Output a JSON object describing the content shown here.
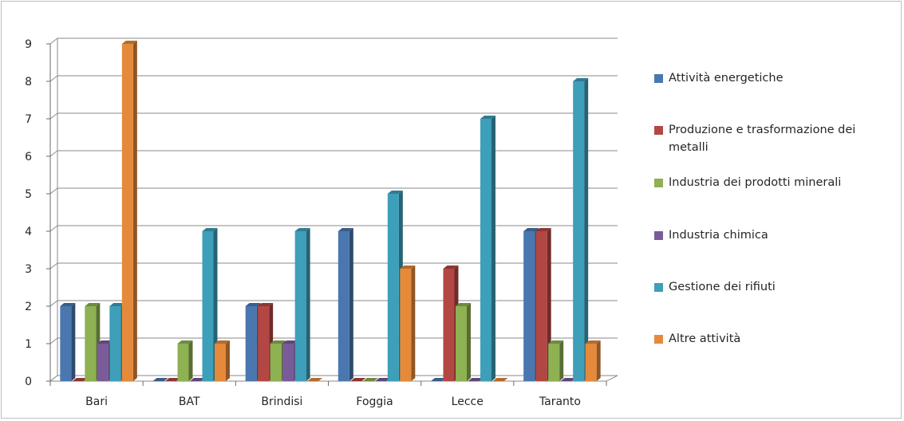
{
  "chart_data": {
    "type": "bar",
    "title": "",
    "xlabel": "",
    "ylabel": "",
    "ylim": [
      0,
      9
    ],
    "yticks": [
      "0",
      "1",
      "2",
      "3",
      "4",
      "5",
      "6",
      "7",
      "8",
      "9"
    ],
    "grid": true,
    "legend_position": "right",
    "categories": [
      "Bari",
      "BAT",
      "Brindisi",
      "Foggia",
      "Lecce",
      "Taranto"
    ],
    "series": [
      {
        "name": "Attività energetiche",
        "color": "#4a77b0",
        "values": [
          2,
          0,
          2,
          4,
          0,
          4
        ]
      },
      {
        "name": "Produzione e trasformazione dei metalli",
        "color": "#b34744",
        "values": [
          0,
          0,
          2,
          0,
          3,
          4
        ]
      },
      {
        "name": "Industria dei prodotti minerali",
        "color": "#8eb152",
        "values": [
          2,
          1,
          1,
          0,
          2,
          1
        ]
      },
      {
        "name": "Industria chimica",
        "color": "#7a5b9a",
        "values": [
          1,
          0,
          1,
          0,
          0,
          0
        ]
      },
      {
        "name": "Gestione dei rifiuti",
        "color": "#3d9fba",
        "values": [
          2,
          4,
          4,
          5,
          7,
          8
        ]
      },
      {
        "name": "Altre attività",
        "color": "#e58a3a",
        "values": [
          9,
          1,
          0,
          3,
          0,
          1
        ]
      }
    ]
  }
}
